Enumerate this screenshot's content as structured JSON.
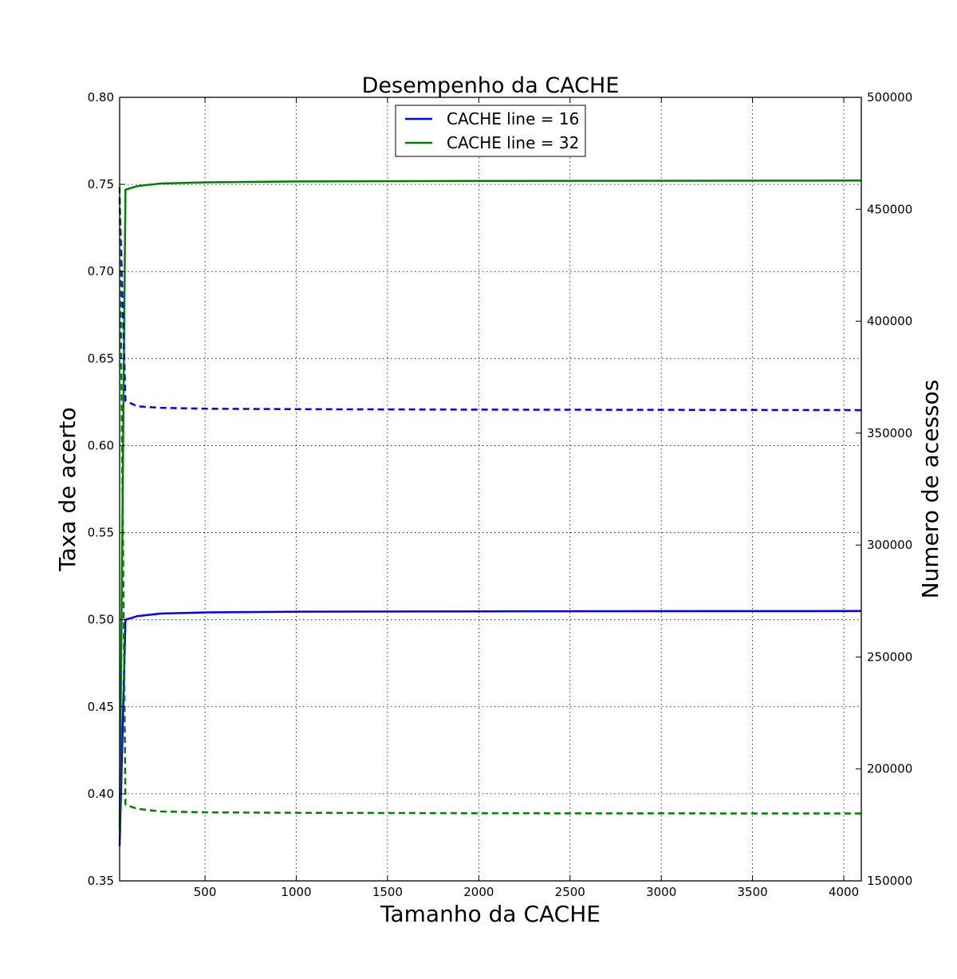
{
  "chart_data": {
    "type": "line",
    "title": "Desempenho da CACHE",
    "xlabel": "Tamanho da CACHE",
    "ylabel": "Taxa de acerto",
    "y2label": "Numero de acessos",
    "xlim": [
      32,
      4096
    ],
    "ylim": [
      0.35,
      0.8
    ],
    "y2lim": [
      150000,
      500000
    ],
    "x_ticks": [
      "500",
      "1000",
      "1500",
      "2000",
      "2500",
      "3000",
      "3500",
      "4000"
    ],
    "y_ticks": [
      "0.35",
      "0.40",
      "0.45",
      "0.50",
      "0.55",
      "0.60",
      "0.65",
      "0.70",
      "0.75",
      "0.80"
    ],
    "y2_ticks": [
      "150000",
      "200000",
      "250000",
      "300000",
      "350000",
      "400000",
      "450000",
      "500000"
    ],
    "grid": true,
    "legend_position": "upper-center",
    "x": [
      32,
      64,
      128,
      256,
      512,
      1024,
      2048,
      4096
    ],
    "series": [
      {
        "name": "CACHE line = 16",
        "color": "#0000ff",
        "axis": "left",
        "style": "solid",
        "values": [
          0.37,
          0.5,
          0.502,
          0.5035,
          0.5042,
          0.5046,
          0.5048,
          0.505
        ]
      },
      {
        "name": "CACHE line = 32",
        "color": "#008000",
        "axis": "left",
        "style": "solid",
        "values": [
          0.38,
          0.747,
          0.749,
          0.7505,
          0.7512,
          0.7517,
          0.752,
          0.7522
        ]
      },
      {
        "color": "#0000ff",
        "axis": "right",
        "style": "dashed",
        "values": [
          455000,
          364500,
          362000,
          361300,
          360900,
          360700,
          360500,
          360300
        ]
      },
      {
        "color": "#008000",
        "axis": "right",
        "style": "dashed",
        "values": [
          460000,
          184000,
          182200,
          181000,
          180600,
          180400,
          180200,
          180100
        ]
      }
    ]
  }
}
